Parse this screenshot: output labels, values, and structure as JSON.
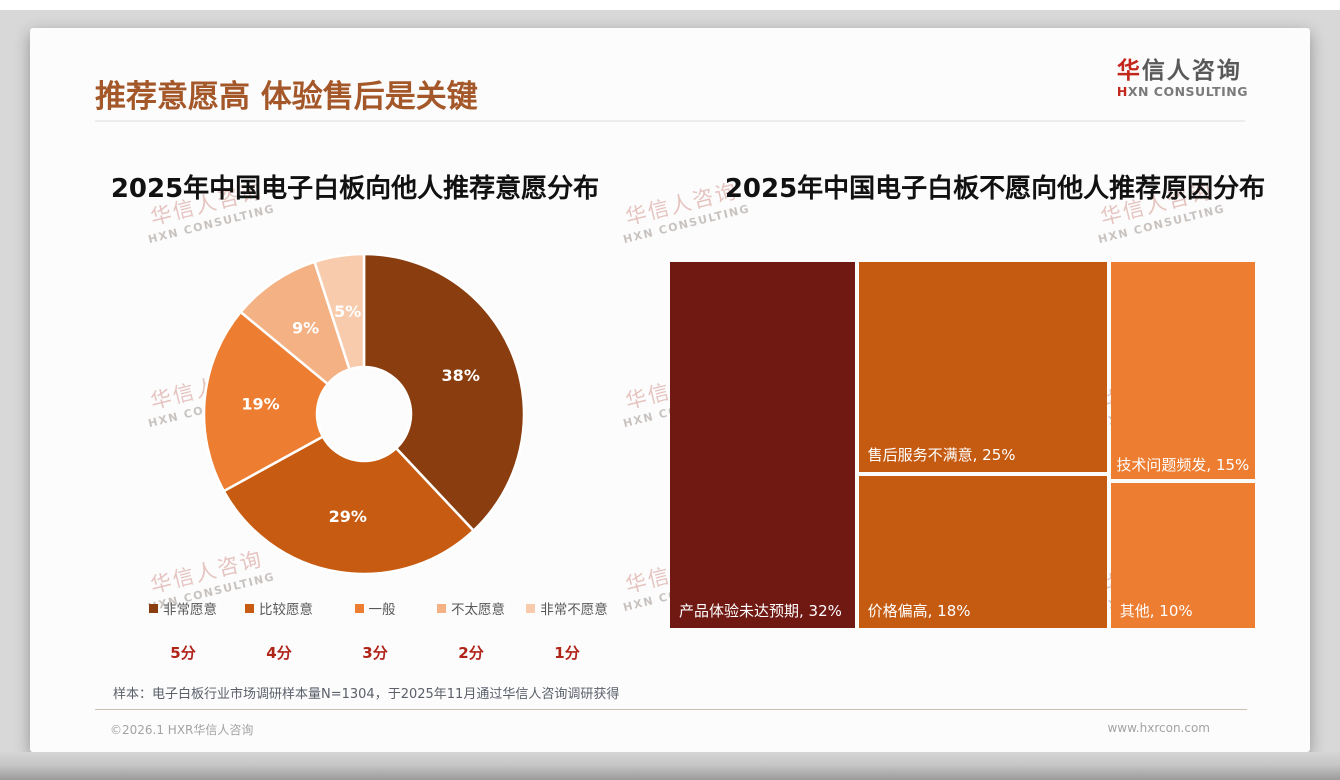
{
  "page": {
    "title": "推荐意愿高 体验售后是关键",
    "logo": {
      "cn_first": "华",
      "cn_rest": "信人咨询",
      "en_first": "H",
      "en_rest": "XN CONSULTING"
    },
    "watermark": {
      "line1": "华信人咨询",
      "line2": "HXN CONSULTING"
    },
    "footnote": "样本：电子白板行业市场调研样本量N=1304，于2025年11月通过华信人咨询调研获得",
    "footer": {
      "copyright": "©2026.1 HXR华信人咨询",
      "website": "www.hxrcon.com"
    }
  },
  "theme": {
    "title_color": "#A4582A",
    "brand_red": "#C3271C",
    "score_red": "#B02418"
  },
  "chart_data": [
    {
      "type": "pie",
      "subtype": "donut",
      "title": "2025年中国电子白板向他人推荐意愿分布",
      "categories": [
        "非常愿意",
        "比较愿意",
        "一般",
        "不太愿意",
        "非常不愿意"
      ],
      "values": [
        38,
        29,
        19,
        9,
        5
      ],
      "unit": "%",
      "labels": [
        "38%",
        "29%",
        "19%",
        "9%",
        "5%"
      ],
      "scores": [
        "5分",
        "4分",
        "3分",
        "2分",
        "1分"
      ],
      "colors": [
        "#8A3D0E",
        "#C65B11",
        "#ED7D31",
        "#F4B183",
        "#F8CBAD"
      ],
      "start_angle_deg": 0,
      "direction": "clockwise",
      "legend_position": "bottom"
    },
    {
      "type": "treemap",
      "title": "2025年中国电子白板不愿向他人推荐原因分布",
      "unit": "%",
      "items": [
        {
          "label": "产品体验未达预期",
          "value": 32,
          "display": "产品体验未达预期, 32%",
          "color": "#701812",
          "label_align": "left"
        },
        {
          "label": "售后服务不满意",
          "value": 25,
          "display": "售后服务不满意, 25%",
          "color": "#C55A11",
          "label_align": "left"
        },
        {
          "label": "价格偏高",
          "value": 18,
          "display": "价格偏高, 18%",
          "color": "#C55A11",
          "label_align": "left"
        },
        {
          "label": "技术问题频发",
          "value": 15,
          "display": "技术问题频发, 15%",
          "color": "#ED7D31",
          "label_align": "center"
        },
        {
          "label": "其他",
          "value": 10,
          "display": "其他, 10%",
          "color": "#ED7D31",
          "label_align": "left"
        }
      ],
      "column_layout": [
        [
          0
        ],
        [
          1,
          2
        ],
        [
          3,
          4
        ]
      ]
    }
  ]
}
